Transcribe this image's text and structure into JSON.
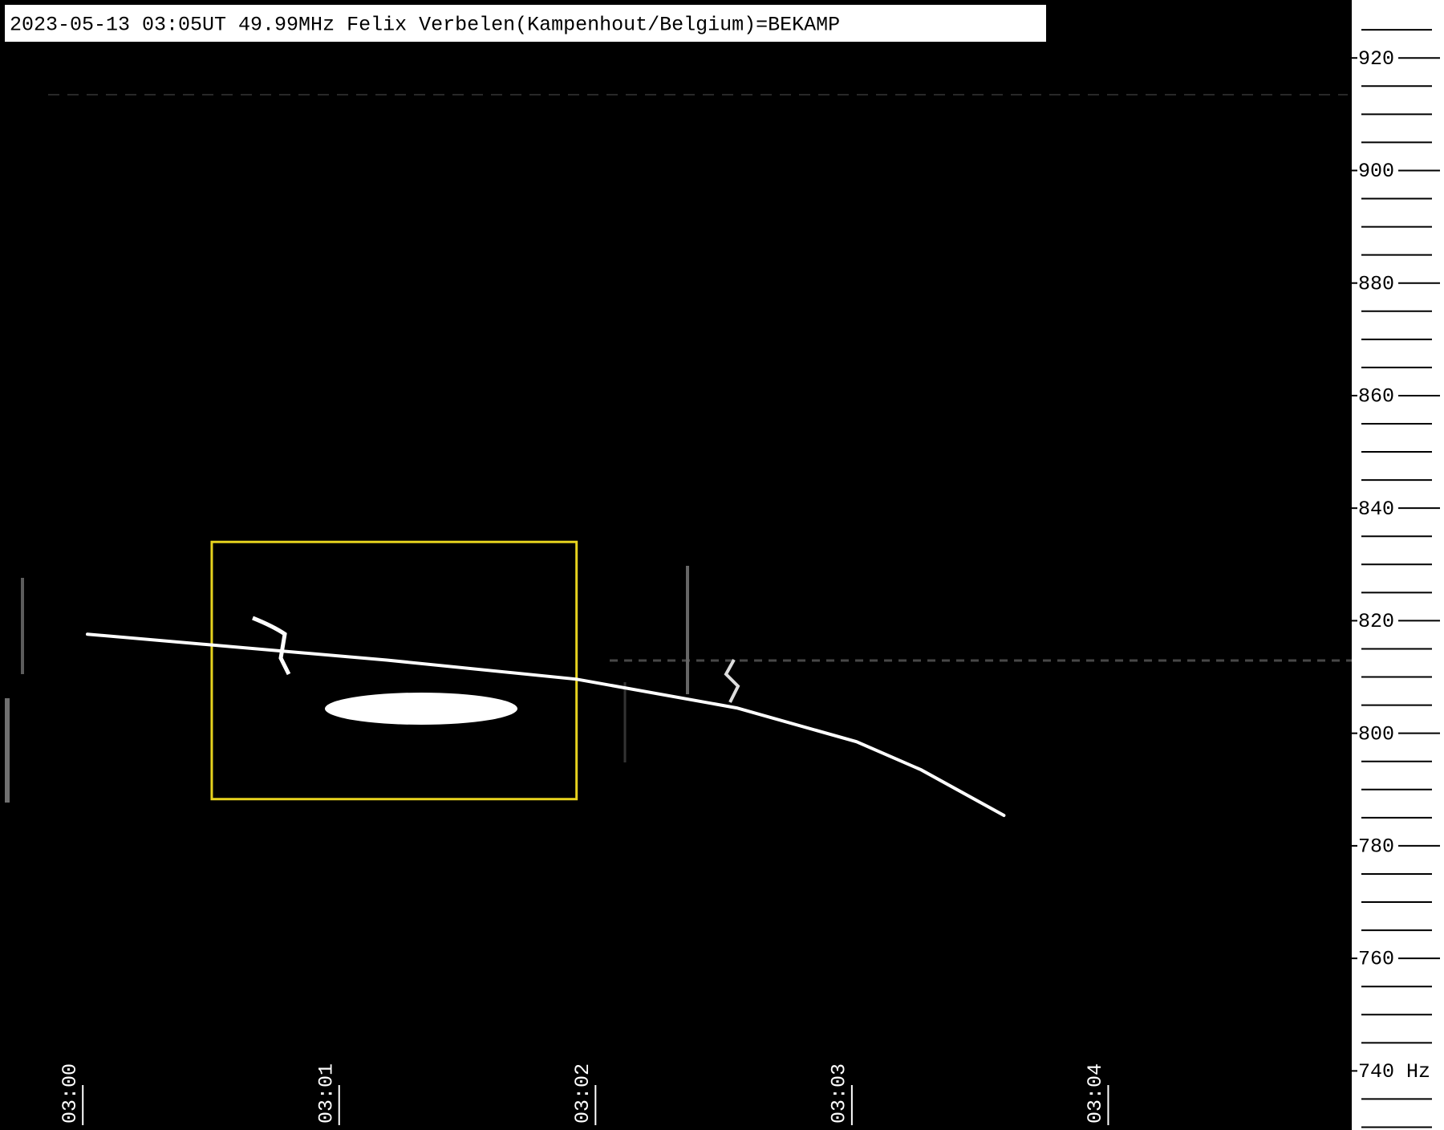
{
  "chart_data": {
    "type": "spectrogram",
    "title": "2023-05-13 03:05UT 49.99MHz Felix Verbelen(Kampenhout/Belgium)=BEKAMP",
    "xlim": [
      -0.323,
      4.95
    ],
    "xticks": [
      {
        "value": 0,
        "label": "03:00"
      },
      {
        "value": 1,
        "label": "03:01"
      },
      {
        "value": 2,
        "label": "03:02"
      },
      {
        "value": 3,
        "label": "03:03"
      },
      {
        "value": 4,
        "label": "03:04"
      }
    ],
    "ylim": [
      729.5,
      930.3
    ],
    "yticks": [
      {
        "value": 740,
        "label": "740 Hz"
      },
      760,
      780,
      800,
      820,
      840,
      860,
      880,
      900,
      920
    ],
    "yminor_ticks": [
      730,
      735,
      745,
      750,
      755,
      765,
      770,
      775,
      785,
      790,
      795,
      805,
      810,
      815,
      825,
      830,
      835,
      845,
      850,
      855,
      865,
      870,
      875,
      885,
      890,
      895,
      905,
      910,
      915,
      925
    ],
    "trace": {
      "color": "#ffffff",
      "x": [
        0.018,
        0.503,
        1.186,
        1.926,
        2.551,
        3.018,
        3.27,
        3.593
      ],
      "y": [
        817.6,
        815.7,
        813.0,
        809.6,
        804.5,
        798.5,
        793.5,
        785.4
      ]
    },
    "highlight": {
      "color": "#e6d21e",
      "xlim": [
        0.503,
        1.926
      ],
      "ylim": [
        788.3,
        834.0
      ]
    }
  }
}
